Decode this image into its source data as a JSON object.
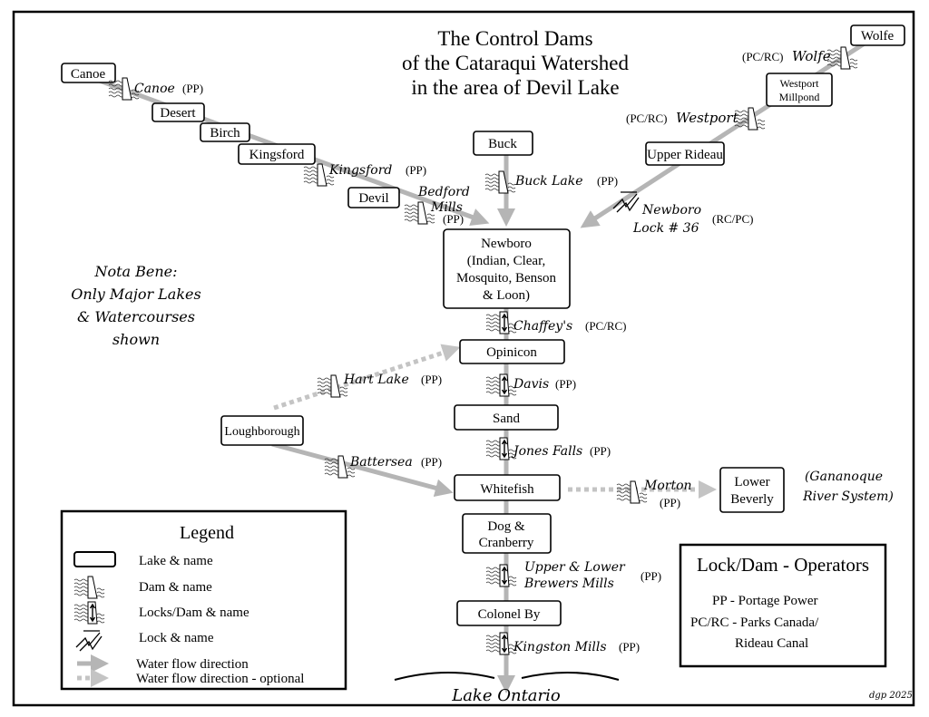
{
  "title": [
    "The Control Dams",
    "of the Cataraqui Watershed",
    "in the area of Devil Lake"
  ],
  "lakes": {
    "canoe": "Canoe",
    "desert": "Desert",
    "birch": "Birch",
    "kingsford": "Kingsford",
    "devil": "Devil",
    "buck": "Buck",
    "upper_rideau": "Upper Rideau",
    "westport_millpond": [
      "Westport",
      "Millpond"
    ],
    "wolfe": "Wolfe",
    "newboro": [
      "Newboro",
      "(Indian, Clear,",
      "Mosquito, Benson",
      "& Loon)"
    ],
    "opinicon": "Opinicon",
    "sand": "Sand",
    "loughborough": "Loughborough",
    "whitefish": "Whitefish",
    "dog_cranberry": [
      "Dog &",
      "Cranberry"
    ],
    "colonel_by": "Colonel By",
    "lower_beverly": [
      "Lower",
      "Beverly"
    ],
    "lake_ontario": "Lake Ontario"
  },
  "dams": {
    "canoe": {
      "name": "Canoe",
      "op": "(PP)"
    },
    "kingsford": {
      "name": "Kingsford",
      "op": "(PP)"
    },
    "bedford": {
      "name": [
        "Bedford",
        "Mills"
      ],
      "op": "(PP)"
    },
    "buck": {
      "name": "Buck Lake",
      "op": "(PP)"
    },
    "westport": {
      "name": "Westport",
      "op": "(PC/RC)"
    },
    "wolfe": {
      "name": "Wolfe",
      "op": "(PC/RC)"
    },
    "newboro_lock": {
      "name": [
        "Newboro",
        "Lock # 36"
      ],
      "op": "(RC/PC)"
    },
    "chaffeys": {
      "name": "Chaffey's",
      "op": "(PC/RC)"
    },
    "hart": {
      "name": "Hart Lake",
      "op": "(PP)"
    },
    "davis": {
      "name": "Davis",
      "op": "(PP)"
    },
    "jones": {
      "name": "Jones Falls",
      "op": "(PP)"
    },
    "battersea": {
      "name": "Battersea",
      "op": "(PP)"
    },
    "morton": {
      "name": "Morton",
      "op": "(PP)"
    },
    "brewers": {
      "name": [
        "Upper & Lower",
        "Brewers Mills"
      ],
      "op": "(PP)"
    },
    "kingston": {
      "name": "Kingston Mills",
      "op": "(PP)"
    }
  },
  "gananoque": [
    "(Gananoque",
    "River System)"
  ],
  "nota_bene": [
    "Nota Bene:",
    "Only Major Lakes",
    "& Watercourses",
    "shown"
  ],
  "legend": {
    "title": "Legend",
    "items": [
      "Lake & name",
      "Dam & name",
      "Locks/Dam & name",
      "Lock & name",
      "Water flow direction",
      "Water flow direction - optional"
    ]
  },
  "operators": {
    "title": "Lock/Dam - Operators",
    "lines": [
      "PP - Portage Power",
      "PC/RC - Parks Canada/",
      "Rideau Canal"
    ]
  },
  "signature": "dgp 2025",
  "colors": {
    "flow": "#b5b5b5",
    "border": "#000000"
  }
}
